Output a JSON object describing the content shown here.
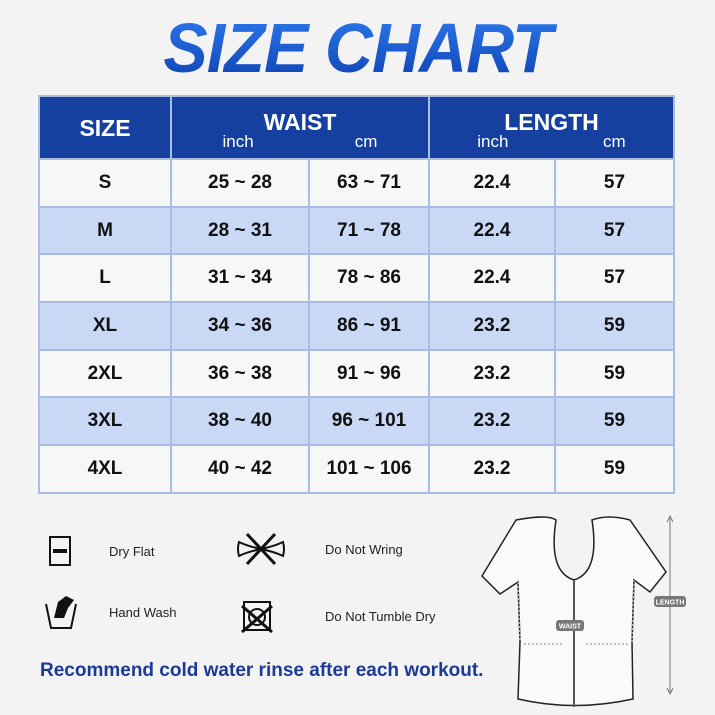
{
  "title": "SIZE CHART",
  "table": {
    "headers": {
      "size": "SIZE",
      "waist": "WAIST",
      "length": "LENGTH",
      "inch": "inch",
      "cm": "cm"
    },
    "rows": [
      [
        "S",
        "25 ~ 28",
        "63 ~ 71",
        "22.4",
        "57"
      ],
      [
        "M",
        "28 ~ 31",
        "71 ~ 78",
        "22.4",
        "57"
      ],
      [
        "L",
        "31 ~ 34",
        "78 ~ 86",
        "22.4",
        "57"
      ],
      [
        "XL",
        "34 ~ 36",
        "86 ~ 91",
        "23.2",
        "59"
      ],
      [
        "2XL",
        "36 ~ 38",
        "91 ~ 96",
        "23.2",
        "59"
      ],
      [
        "3XL",
        "38 ~ 40",
        "96 ~ 101",
        "23.2",
        "59"
      ],
      [
        "4XL",
        "40 ~ 42",
        "101 ~ 106",
        "23.2",
        "59"
      ]
    ]
  },
  "care": [
    {
      "icon": "dry-flat-icon",
      "label": "Dry Flat"
    },
    {
      "icon": "do-not-wring-icon",
      "label": "Do Not Wring"
    },
    {
      "icon": "hand-wash-icon",
      "label": "Hand Wash"
    },
    {
      "icon": "do-not-tumble-dry-icon",
      "label": "Do Not Tumble Dry"
    }
  ],
  "diagram": {
    "waist": "WAIST",
    "length": "LENGTH"
  },
  "note": "Recommend cold water rinse after each workout.",
  "colors": {
    "header": "#1640a0",
    "row_alt": "#c9d9f5",
    "note": "#1a3a95"
  }
}
